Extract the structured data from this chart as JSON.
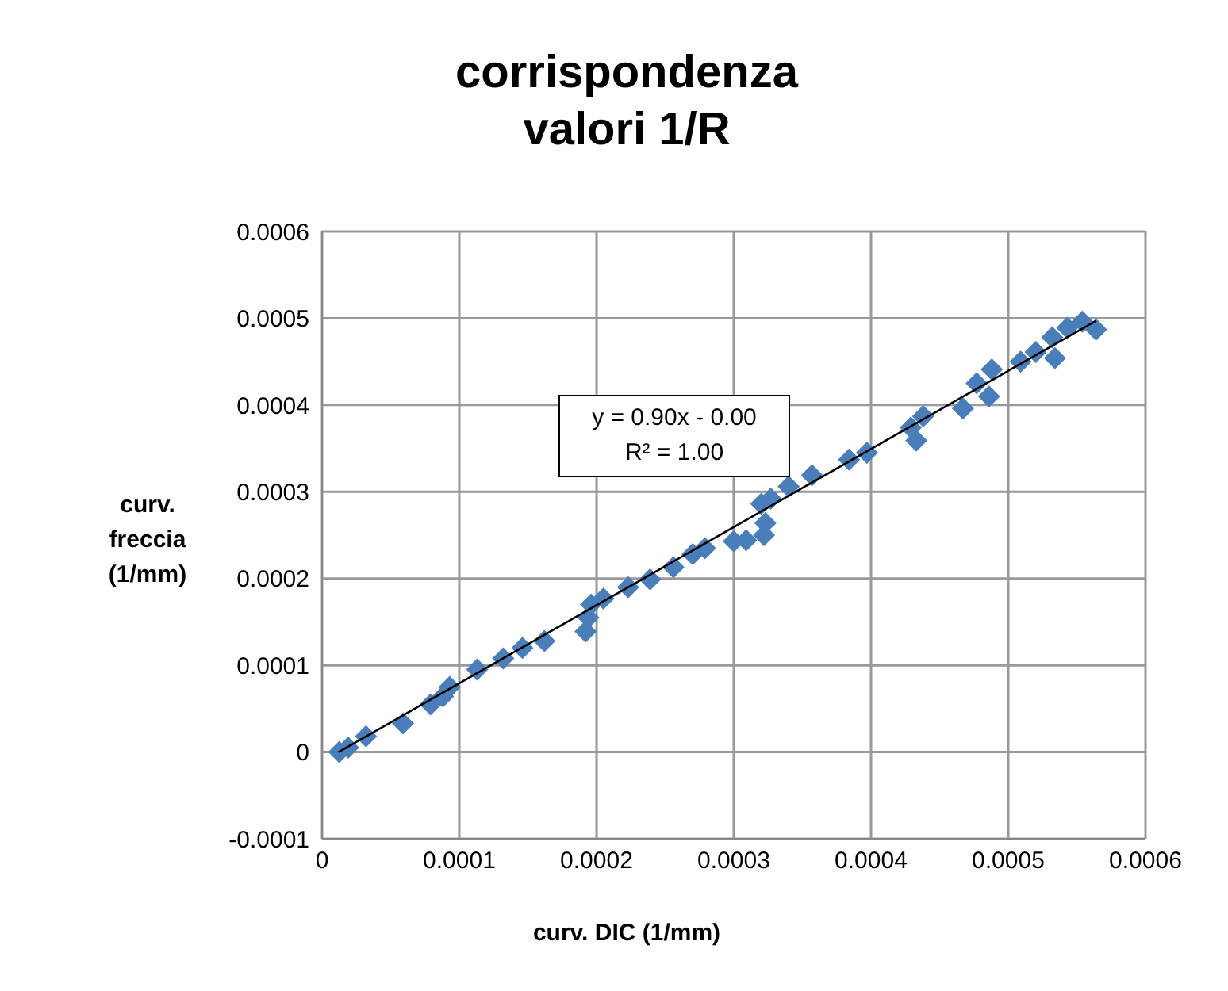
{
  "chart_data": {
    "type": "scatter",
    "title": "corrispondenza valori 1/R",
    "xlabel": "curv. DIC (1/mm)",
    "ylabel": "curv. freccia (1/mm)",
    "annotations": [
      "y = 0.90x - 0.00",
      "R² = 1.00"
    ],
    "series": [
      {
        "color": "#4a7ebb",
        "marker": "diamond",
        "x": [
          1.25e-05,
          1.9e-05,
          3.2e-05,
          5.9e-05,
          7.9e-05,
          8.8e-05,
          9.3e-05,
          0.000113,
          0.000132,
          0.000146,
          0.000162,
          0.000192,
          0.000194,
          0.000196,
          0.000205,
          0.000223,
          0.000239,
          0.000256,
          0.00027,
          0.000279,
          0.0003,
          0.000309,
          0.000322,
          0.000323,
          0.00032,
          0.000327,
          0.00034,
          0.000357,
          0.000384,
          0.000397,
          0.000429,
          0.000438,
          0.000433,
          0.000467,
          0.000477,
          0.000488,
          0.000486,
          0.000509,
          0.00052,
          0.000532,
          0.000534,
          0.000543,
          0.000554,
          0.000564
        ],
        "values": [
          0,
          5e-06,
          1.8e-05,
          3.3e-05,
          5.5e-05,
          6.4e-05,
          7.5e-05,
          9.5e-05,
          0.000108,
          0.00012,
          0.000128,
          0.000139,
          0.000155,
          0.00017,
          0.000177,
          0.00019,
          0.000199,
          0.000213,
          0.000228,
          0.000235,
          0.000243,
          0.000244,
          0.00025,
          0.000264,
          0.000286,
          0.000292,
          0.000306,
          0.000319,
          0.000337,
          0.000345,
          0.000374,
          0.000387,
          0.000359,
          0.000396,
          0.000425,
          0.000441,
          0.00041,
          0.00045,
          0.000461,
          0.000478,
          0.000454,
          0.000489,
          0.000496,
          0.000487
        ]
      },
      {
        "type": "line",
        "color": "#000000",
        "marker": "none",
        "x": [
          1.2e-05,
          0.000564
        ],
        "values": [
          0,
          0.000497
        ]
      }
    ],
    "xlim": [
      0,
      0.0006
    ],
    "xticks": [
      0,
      0.0001,
      0.0002,
      0.0003,
      0.0004,
      0.0005,
      0.0006
    ],
    "ylim": [
      -0.0001,
      0.0006
    ],
    "yticks": [
      -0.0001,
      0,
      0.0001,
      0.0002,
      0.0003,
      0.0004,
      0.0005,
      0.0006
    ],
    "grid": true
  }
}
